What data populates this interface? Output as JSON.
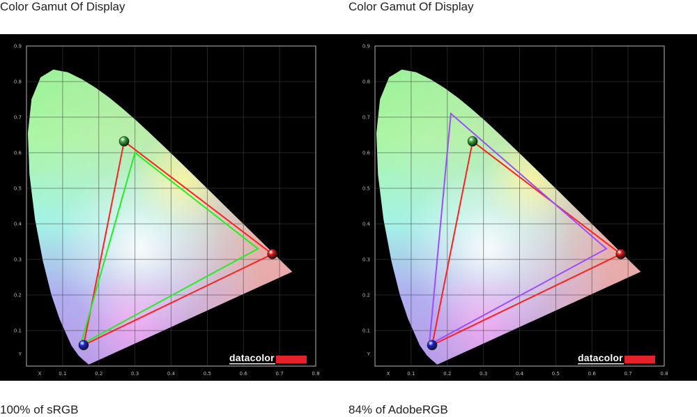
{
  "chart_data": [
    {
      "type": "scatter",
      "title": "Color Gamut Of Display",
      "caption": "100% of sRGB",
      "xlabel": "X",
      "ylabel": "Y",
      "xlim": [
        0,
        0.8
      ],
      "ylim": [
        0,
        0.9
      ],
      "x_ticks": [
        "0.1",
        "0.2",
        "0.3",
        "0.4",
        "0.5",
        "0.6",
        "0.7",
        "0.8"
      ],
      "y_ticks": [
        "0.1",
        "0.2",
        "0.3",
        "0.4",
        "0.5",
        "0.6",
        "0.7",
        "0.8",
        "0.9"
      ],
      "grid": true,
      "brand": "datacolor",
      "series": [
        {
          "color": "#ff2020",
          "points": [
            [
              0.68,
              0.315
            ],
            [
              0.27,
              0.632
            ],
            [
              0.158,
              0.059
            ]
          ]
        },
        {
          "color": "#22ee22",
          "points": [
            [
              0.64,
              0.33
            ],
            [
              0.3,
              0.6
            ],
            [
              0.15,
              0.06
            ]
          ]
        }
      ],
      "markers": [
        {
          "x": 0.68,
          "y": 0.315,
          "color": "#d81818",
          "icon": "red-primary-marker"
        },
        {
          "x": 0.27,
          "y": 0.632,
          "color": "#3aa83a",
          "icon": "green-primary-marker"
        },
        {
          "x": 0.158,
          "y": 0.059,
          "color": "#1a22d8",
          "icon": "blue-primary-marker"
        }
      ]
    },
    {
      "type": "scatter",
      "title": "Color Gamut Of Display",
      "caption": "84% of AdobeRGB",
      "xlabel": "X",
      "ylabel": "Y",
      "xlim": [
        0,
        0.8
      ],
      "ylim": [
        0,
        0.9
      ],
      "x_ticks": [
        "0.1",
        "0.2",
        "0.3",
        "0.4",
        "0.5",
        "0.6",
        "0.7",
        "0.8"
      ],
      "y_ticks": [
        "0.1",
        "0.2",
        "0.3",
        "0.4",
        "0.5",
        "0.6",
        "0.7",
        "0.8",
        "0.9"
      ],
      "grid": true,
      "brand": "datacolor",
      "series": [
        {
          "color": "#ff2020",
          "points": [
            [
              0.68,
              0.315
            ],
            [
              0.27,
              0.632
            ],
            [
              0.158,
              0.059
            ]
          ]
        },
        {
          "color": "#9b4dff",
          "points": [
            [
              0.64,
              0.33
            ],
            [
              0.21,
              0.71
            ],
            [
              0.15,
              0.06
            ]
          ]
        }
      ],
      "markers": [
        {
          "x": 0.68,
          "y": 0.315,
          "color": "#d81818",
          "icon": "red-primary-marker"
        },
        {
          "x": 0.27,
          "y": 0.632,
          "color": "#3aa83a",
          "icon": "green-primary-marker"
        },
        {
          "x": 0.158,
          "y": 0.059,
          "color": "#1a22d8",
          "icon": "blue-primary-marker"
        }
      ]
    }
  ]
}
